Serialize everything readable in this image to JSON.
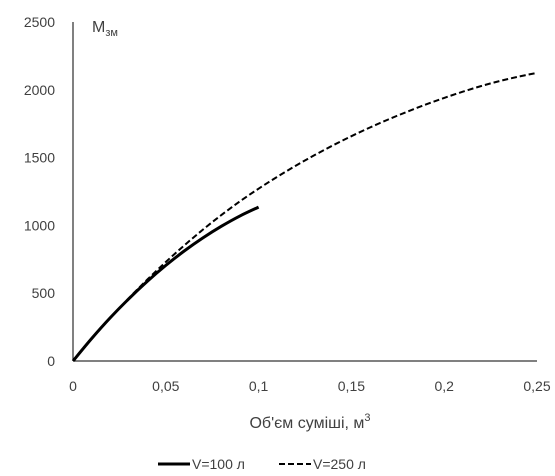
{
  "chart_data": {
    "type": "line",
    "title": "",
    "xlabel": "Об'єм суміші, м",
    "xlabel_sup": "3",
    "ylabel": "М",
    "ylabel_sub": "зм",
    "xlim": [
      0,
      0.25
    ],
    "ylim": [
      0,
      2500
    ],
    "x_ticks": [
      0,
      0.05,
      0.1,
      0.15,
      0.2,
      0.25
    ],
    "x_tick_labels": [
      "0",
      "0,05",
      "0,1",
      "0,15",
      "0,2",
      "0,25"
    ],
    "y_ticks": [
      0,
      500,
      1000,
      1500,
      2000,
      2500
    ],
    "y_tick_labels": [
      "0",
      "500",
      "1000",
      "1500",
      "2000",
      "2500"
    ],
    "grid": false,
    "legend_position": "bottom",
    "series": [
      {
        "name": "V=100 л",
        "style": "solid",
        "color": "#000000",
        "x": [
          0,
          0.01,
          0.02,
          0.03,
          0.04,
          0.05,
          0.06,
          0.07,
          0.08,
          0.09,
          0.1
        ],
        "y": [
          0,
          165,
          318,
          458,
          587,
          705,
          812,
          908,
          994,
          1070,
          1135
        ]
      },
      {
        "name": "V=250 л",
        "style": "dashed",
        "color": "#000000",
        "x": [
          0,
          0.01,
          0.02,
          0.03,
          0.04,
          0.05,
          0.06,
          0.07,
          0.08,
          0.09,
          0.1,
          0.11,
          0.12,
          0.13,
          0.14,
          0.15,
          0.16,
          0.17,
          0.18,
          0.19,
          0.2,
          0.21,
          0.22,
          0.23,
          0.24,
          0.25
        ],
        "y": [
          0,
          162,
          316,
          462,
          600,
          730,
          853,
          969,
          1077,
          1178,
          1271,
          1358,
          1440,
          1517,
          1590,
          1658,
          1722,
          1782,
          1838,
          1891,
          1940,
          1986,
          2028,
          2065,
          2097,
          2125
        ]
      }
    ]
  }
}
